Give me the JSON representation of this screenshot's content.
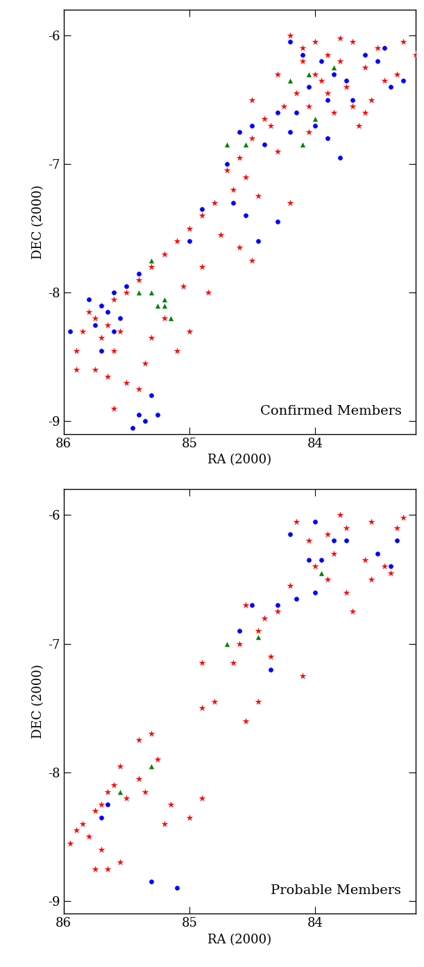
{
  "chart_data": [
    {
      "type": "scatter",
      "annotation": "Confirmed Members",
      "xlabel": "RA (2000)",
      "ylabel": "DEC (2000)",
      "xlim": [
        86,
        83.2
      ],
      "ylim": [
        -9.1,
        -5.8
      ],
      "xticks": [
        86,
        85,
        84
      ],
      "yticks": [
        -9,
        -8,
        -7,
        -6
      ],
      "series": [
        {
          "color": "#ff0000",
          "marker": "star",
          "x": [
            84.2,
            84.0,
            83.8,
            83.7,
            83.5,
            83.3,
            83.2,
            83.9,
            84.1,
            83.6,
            84.3,
            83.95,
            83.75,
            84.15,
            83.55,
            84.05,
            83.85,
            83.65,
            84.25,
            83.45,
            83.35,
            83.9,
            84.0,
            83.8,
            84.1,
            83.7,
            84.35,
            84.5,
            84.6,
            84.7,
            84.65,
            84.55,
            84.8,
            84.45,
            84.9,
            85.0,
            84.2,
            84.75,
            85.1,
            84.6,
            84.5,
            85.2,
            85.3,
            85.4,
            84.9,
            85.05,
            85.5,
            85.6,
            85.7,
            85.75,
            85.8,
            85.65,
            85.55,
            85.7,
            85.85,
            85.6,
            85.75,
            85.65,
            85.5,
            85.4,
            85.35,
            85.9,
            85.9,
            85.6,
            85.1,
            85.2,
            85.3,
            84.85,
            85.0,
            84.5,
            84.4,
            84.05,
            84.3,
            83.6
          ],
          "values": [
            -6.0,
            -6.05,
            -6.02,
            -6.05,
            -6.1,
            -6.05,
            -6.15,
            -6.15,
            -6.2,
            -6.25,
            -6.3,
            -6.35,
            -6.4,
            -6.45,
            -6.5,
            -6.55,
            -6.6,
            -6.7,
            -6.55,
            -6.35,
            -6.3,
            -6.45,
            -6.3,
            -6.2,
            -6.1,
            -6.55,
            -6.7,
            -6.8,
            -6.95,
            -7.05,
            -7.2,
            -7.1,
            -7.3,
            -7.25,
            -7.4,
            -7.5,
            -7.3,
            -7.55,
            -7.6,
            -7.65,
            -7.75,
            -7.7,
            -7.8,
            -7.9,
            -7.8,
            -7.95,
            -8.0,
            -8.05,
            -8.1,
            -8.2,
            -8.15,
            -8.25,
            -8.3,
            -8.35,
            -8.3,
            -8.45,
            -8.6,
            -8.65,
            -8.7,
            -8.75,
            -8.55,
            -8.45,
            -8.6,
            -8.9,
            -8.45,
            -8.2,
            -8.35,
            -8.0,
            -8.3,
            -6.5,
            -6.65,
            -6.75,
            -6.9,
            -6.6
          ]
        },
        {
          "color": "#0000ff",
          "marker": "circle",
          "x": [
            84.2,
            84.1,
            83.95,
            83.85,
            84.05,
            83.9,
            84.15,
            83.75,
            83.6,
            83.45,
            83.4,
            83.7,
            84.0,
            84.2,
            84.3,
            83.9,
            83.8,
            84.5,
            84.4,
            84.6,
            84.7,
            84.65,
            84.55,
            84.3,
            84.45,
            84.9,
            85.0,
            85.4,
            85.5,
            85.6,
            85.7,
            85.65,
            85.55,
            85.75,
            85.8,
            85.6,
            85.7,
            85.95,
            85.4,
            85.35,
            85.25,
            85.3,
            85.45,
            83.5,
            83.3
          ],
          "values": [
            -6.05,
            -6.15,
            -6.2,
            -6.3,
            -6.4,
            -6.5,
            -6.6,
            -6.35,
            -6.15,
            -6.1,
            -6.4,
            -6.5,
            -6.7,
            -6.75,
            -6.6,
            -6.8,
            -6.95,
            -6.7,
            -6.85,
            -6.75,
            -7.0,
            -7.3,
            -7.4,
            -7.45,
            -7.6,
            -7.35,
            -7.6,
            -7.85,
            -7.95,
            -8.0,
            -8.1,
            -8.15,
            -8.2,
            -8.25,
            -8.05,
            -8.3,
            -8.45,
            -8.3,
            -8.95,
            -9.0,
            -8.95,
            -8.8,
            -9.05,
            -6.2,
            -6.35
          ]
        },
        {
          "color": "#008000",
          "marker": "triangle",
          "x": [
            84.7,
            84.55,
            84.1,
            84.0,
            84.05,
            84.2,
            83.85,
            85.3,
            85.4,
            85.3,
            85.2,
            85.2,
            85.15,
            85.25
          ],
          "values": [
            -6.85,
            -6.85,
            -6.85,
            -6.65,
            -6.3,
            -6.35,
            -6.25,
            -7.75,
            -8.0,
            -8.0,
            -8.05,
            -8.1,
            -8.2,
            -8.1
          ]
        }
      ]
    },
    {
      "type": "scatter",
      "annotation": "Probable Members",
      "xlabel": "RA (2000)",
      "ylabel": "DEC (2000)",
      "xlim": [
        86,
        83.2
      ],
      "ylim": [
        -9.1,
        -5.8
      ],
      "xticks": [
        86,
        85,
        84
      ],
      "yticks": [
        -9,
        -8,
        -7,
        -6
      ],
      "series": [
        {
          "color": "#ff0000",
          "marker": "star",
          "x": [
            84.15,
            83.8,
            83.75,
            83.55,
            83.3,
            83.35,
            83.9,
            83.85,
            83.6,
            83.45,
            84.05,
            84.0,
            83.9,
            83.75,
            83.7,
            84.2,
            84.3,
            84.4,
            84.55,
            84.45,
            84.6,
            84.65,
            84.35,
            84.1,
            84.45,
            84.8,
            84.9,
            84.9,
            84.55,
            85.3,
            85.4,
            85.25,
            85.4,
            85.35,
            85.15,
            84.9,
            85.0,
            85.2,
            85.55,
            85.6,
            85.65,
            85.7,
            85.75,
            85.85,
            85.8,
            85.7,
            85.9,
            85.75,
            85.65,
            85.55,
            85.95,
            85.5,
            83.4,
            83.55
          ],
          "values": [
            -6.05,
            -6.0,
            -6.1,
            -6.05,
            -6.02,
            -6.1,
            -6.15,
            -6.3,
            -6.35,
            -6.4,
            -6.2,
            -6.4,
            -6.5,
            -6.6,
            -6.75,
            -6.55,
            -6.75,
            -6.8,
            -6.7,
            -6.9,
            -7.0,
            -7.15,
            -7.1,
            -7.25,
            -7.45,
            -7.45,
            -7.5,
            -7.15,
            -7.6,
            -7.7,
            -7.75,
            -7.9,
            -8.05,
            -8.15,
            -8.25,
            -8.2,
            -8.35,
            -8.4,
            -7.95,
            -8.1,
            -8.15,
            -8.25,
            -8.3,
            -8.4,
            -8.5,
            -8.6,
            -8.45,
            -8.75,
            -8.75,
            -8.7,
            -8.55,
            -8.2,
            -6.45,
            -6.5
          ]
        },
        {
          "color": "#0000ff",
          "marker": "circle",
          "x": [
            84.2,
            84.0,
            84.05,
            83.85,
            83.75,
            83.5,
            83.35,
            83.4,
            83.95,
            84.0,
            84.15,
            84.3,
            84.5,
            84.6,
            84.35,
            85.7,
            85.65,
            85.3,
            85.1
          ],
          "values": [
            -6.15,
            -6.05,
            -6.35,
            -6.2,
            -6.2,
            -6.3,
            -6.2,
            -6.4,
            -6.35,
            -6.6,
            -6.65,
            -6.7,
            -6.7,
            -6.9,
            -7.2,
            -8.35,
            -8.25,
            -8.85,
            -8.9
          ]
        },
        {
          "color": "#008000",
          "marker": "triangle",
          "x": [
            83.95,
            84.7,
            84.45,
            85.3,
            85.55
          ],
          "values": [
            -6.45,
            -7.0,
            -6.95,
            -7.95,
            -8.15
          ]
        }
      ]
    }
  ]
}
